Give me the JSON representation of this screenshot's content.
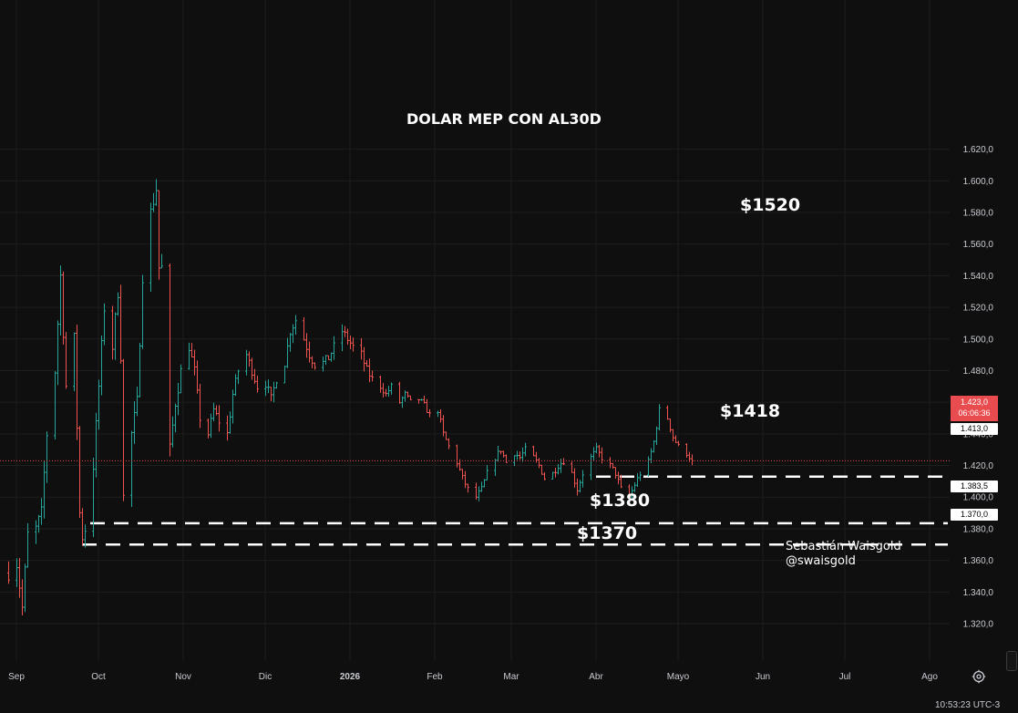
{
  "chart_data": {
    "type": "ohlc",
    "title": "DOLAR MEP CON AL30D",
    "xlabel": "",
    "ylabel": "",
    "ylim": [
      1310,
      1630
    ],
    "yticks": [
      1320,
      1340,
      1360,
      1380,
      1400,
      1420,
      1440,
      1460,
      1480,
      1500,
      1520,
      1540,
      1560,
      1580,
      1600,
      1620
    ],
    "ytick_labels": [
      "1.320,0",
      "1.340,0",
      "1.360,0",
      "1.380,0",
      "1.400,0",
      "1.420,0",
      "1.440,0",
      "1.460,0",
      "1.480,0",
      "1.500,0",
      "1.520,0",
      "1.540,0",
      "1.560,0",
      "1.580,0",
      "1.600,0",
      "1.620,0"
    ],
    "x_months": [
      {
        "label": "Sep",
        "date": "2025-09-01",
        "bold": false
      },
      {
        "label": "Oct",
        "date": "2025-10-01",
        "bold": false
      },
      {
        "label": "Nov",
        "date": "2025-11-01",
        "bold": false
      },
      {
        "label": "Dic",
        "date": "2025-12-01",
        "bold": false
      },
      {
        "label": "2026",
        "date": "2026-01-01",
        "bold": true
      },
      {
        "label": "Feb",
        "date": "2026-02-01",
        "bold": false
      },
      {
        "label": "Mar",
        "date": "2026-03-01",
        "bold": false
      },
      {
        "label": "Abr",
        "date": "2026-04-01",
        "bold": false
      },
      {
        "label": "Mayo",
        "date": "2026-05-01",
        "bold": false
      },
      {
        "label": "Jun",
        "date": "2026-06-01",
        "bold": false
      },
      {
        "label": "Jul",
        "date": "2026-07-01",
        "bold": false
      },
      {
        "label": "Ago",
        "date": "2026-08-01",
        "bold": false
      }
    ],
    "x_range": [
      "2025-08-29",
      "2026-08-25"
    ],
    "up_color": "#26a69a",
    "down_color": "#ef5350",
    "grid": true,
    "current_price": {
      "value": 1423.0,
      "label": "1.423,0",
      "countdown": "06:06:36",
      "color": "#e84c4f"
    },
    "horizontal_levels": [
      {
        "value": 1413.0,
        "label": "1.413,0",
        "start_date": "2026-04-01"
      },
      {
        "value": 1383.5,
        "label": "1.383,5",
        "start_date": "2025-09-28"
      },
      {
        "value": 1370.0,
        "label": "1.370,0",
        "start_date": "2025-09-25"
      }
    ],
    "control_points": [
      {
        "date": "2025-08-29",
        "price": 1352
      },
      {
        "date": "2025-09-01",
        "price": 1358
      },
      {
        "date": "2025-09-03",
        "price": 1330
      },
      {
        "date": "2025-09-05",
        "price": 1376
      },
      {
        "date": "2025-09-08",
        "price": 1380
      },
      {
        "date": "2025-09-10",
        "price": 1390
      },
      {
        "date": "2025-09-12",
        "price": 1440
      },
      {
        "date": "2025-09-15",
        "price": 1480
      },
      {
        "date": "2025-09-17",
        "price": 1540
      },
      {
        "date": "2025-09-19",
        "price": 1470
      },
      {
        "date": "2025-09-22",
        "price": 1500
      },
      {
        "date": "2025-09-24",
        "price": 1390
      },
      {
        "date": "2025-09-25",
        "price": 1375
      },
      {
        "date": "2025-09-26",
        "price": 1380
      },
      {
        "date": "2025-09-29",
        "price": 1420
      },
      {
        "date": "2025-10-01",
        "price": 1470
      },
      {
        "date": "2025-10-03",
        "price": 1520
      },
      {
        "date": "2025-10-06",
        "price": 1495
      },
      {
        "date": "2025-10-08",
        "price": 1530
      },
      {
        "date": "2025-10-09",
        "price": 1490
      },
      {
        "date": "2025-10-10",
        "price": 1400
      },
      {
        "date": "2025-10-13",
        "price": 1440
      },
      {
        "date": "2025-10-15",
        "price": 1460
      },
      {
        "date": "2025-10-17",
        "price": 1540
      },
      {
        "date": "2025-10-20",
        "price": 1580
      },
      {
        "date": "2025-10-22",
        "price": 1595
      },
      {
        "date": "2025-10-23",
        "price": 1545
      },
      {
        "date": "2025-10-24",
        "price": 1545
      },
      {
        "date": "2025-10-27",
        "price": 1430
      },
      {
        "date": "2025-10-29",
        "price": 1460
      },
      {
        "date": "2025-10-31",
        "price": 1480
      },
      {
        "date": "2025-11-03",
        "price": 1495
      },
      {
        "date": "2025-11-05",
        "price": 1480
      },
      {
        "date": "2025-11-07",
        "price": 1450
      },
      {
        "date": "2025-11-10",
        "price": 1440
      },
      {
        "date": "2025-11-12",
        "price": 1455
      },
      {
        "date": "2025-11-14",
        "price": 1448
      },
      {
        "date": "2025-11-17",
        "price": 1440
      },
      {
        "date": "2025-11-19",
        "price": 1465
      },
      {
        "date": "2025-11-21",
        "price": 1480
      },
      {
        "date": "2025-11-24",
        "price": 1490
      },
      {
        "date": "2025-11-26",
        "price": 1480
      },
      {
        "date": "2025-11-28",
        "price": 1470
      },
      {
        "date": "2025-12-01",
        "price": 1472
      },
      {
        "date": "2025-12-03",
        "price": 1462
      },
      {
        "date": "2025-12-05",
        "price": 1475
      },
      {
        "date": "2025-12-08",
        "price": 1485
      },
      {
        "date": "2025-12-10",
        "price": 1505
      },
      {
        "date": "2025-12-12",
        "price": 1512
      },
      {
        "date": "2025-12-15",
        "price": 1500
      },
      {
        "date": "2025-12-17",
        "price": 1490
      },
      {
        "date": "2025-12-19",
        "price": 1484
      },
      {
        "date": "2025-12-22",
        "price": 1485
      },
      {
        "date": "2025-12-24",
        "price": 1488
      },
      {
        "date": "2025-12-26",
        "price": 1495
      },
      {
        "date": "2025-12-29",
        "price": 1505
      },
      {
        "date": "2025-12-31",
        "price": 1500
      },
      {
        "date": "2026-01-02",
        "price": 1495
      },
      {
        "date": "2026-01-05",
        "price": 1490
      },
      {
        "date": "2026-01-07",
        "price": 1480
      },
      {
        "date": "2026-01-09",
        "price": 1475
      },
      {
        "date": "2026-01-12",
        "price": 1470
      },
      {
        "date": "2026-01-14",
        "price": 1465
      },
      {
        "date": "2026-01-16",
        "price": 1470
      },
      {
        "date": "2026-01-19",
        "price": 1460
      },
      {
        "date": "2026-01-21",
        "price": 1465
      },
      {
        "date": "2026-01-23",
        "price": 1460
      },
      {
        "date": "2026-01-26",
        "price": 1462
      },
      {
        "date": "2026-01-28",
        "price": 1458
      },
      {
        "date": "2026-01-30",
        "price": 1452
      },
      {
        "date": "2026-02-02",
        "price": 1455
      },
      {
        "date": "2026-02-04",
        "price": 1440
      },
      {
        "date": "2026-02-06",
        "price": 1432
      },
      {
        "date": "2026-02-09",
        "price": 1422
      },
      {
        "date": "2026-02-11",
        "price": 1412
      },
      {
        "date": "2026-02-13",
        "price": 1405
      },
      {
        "date": "2026-02-16",
        "price": 1400
      },
      {
        "date": "2026-02-18",
        "price": 1405
      },
      {
        "date": "2026-02-20",
        "price": 1415
      },
      {
        "date": "2026-02-23",
        "price": 1425
      },
      {
        "date": "2026-02-25",
        "price": 1430
      },
      {
        "date": "2026-02-27",
        "price": 1422
      },
      {
        "date": "2026-03-02",
        "price": 1428
      },
      {
        "date": "2026-03-04",
        "price": 1425
      },
      {
        "date": "2026-03-06",
        "price": 1430
      },
      {
        "date": "2026-03-09",
        "price": 1425
      },
      {
        "date": "2026-03-11",
        "price": 1420
      },
      {
        "date": "2026-03-13",
        "price": 1412
      },
      {
        "date": "2026-03-16",
        "price": 1415
      },
      {
        "date": "2026-03-18",
        "price": 1420
      },
      {
        "date": "2026-03-20",
        "price": 1423
      },
      {
        "date": "2026-03-23",
        "price": 1415
      },
      {
        "date": "2026-03-25",
        "price": 1405
      },
      {
        "date": "2026-03-27",
        "price": 1415
      },
      {
        "date": "2026-03-30",
        "price": 1425
      },
      {
        "date": "2026-04-01",
        "price": 1430
      },
      {
        "date": "2026-04-03",
        "price": 1425
      },
      {
        "date": "2026-04-06",
        "price": 1420
      },
      {
        "date": "2026-04-08",
        "price": 1415
      },
      {
        "date": "2026-04-10",
        "price": 1405
      },
      {
        "date": "2026-04-13",
        "price": 1400
      },
      {
        "date": "2026-04-15",
        "price": 1408
      },
      {
        "date": "2026-04-17",
        "price": 1415
      },
      {
        "date": "2026-04-20",
        "price": 1422
      },
      {
        "date": "2026-04-22",
        "price": 1435
      },
      {
        "date": "2026-04-24",
        "price": 1455
      },
      {
        "date": "2026-04-27",
        "price": 1450
      },
      {
        "date": "2026-04-29",
        "price": 1438
      },
      {
        "date": "2026-05-01",
        "price": 1432
      },
      {
        "date": "2026-05-04",
        "price": 1428
      },
      {
        "date": "2026-05-06",
        "price": 1423
      }
    ]
  },
  "overlay": {
    "target_1520": "$1520",
    "target_1418": "$1418",
    "target_1380": "$1380",
    "target_1370": "$1370",
    "author_name": "Sebastián Waisgold",
    "author_handle": "@swaisgold"
  },
  "footer": {
    "clock": "10:53:23 UTC-3",
    "settings_icon": "gear-icon"
  }
}
